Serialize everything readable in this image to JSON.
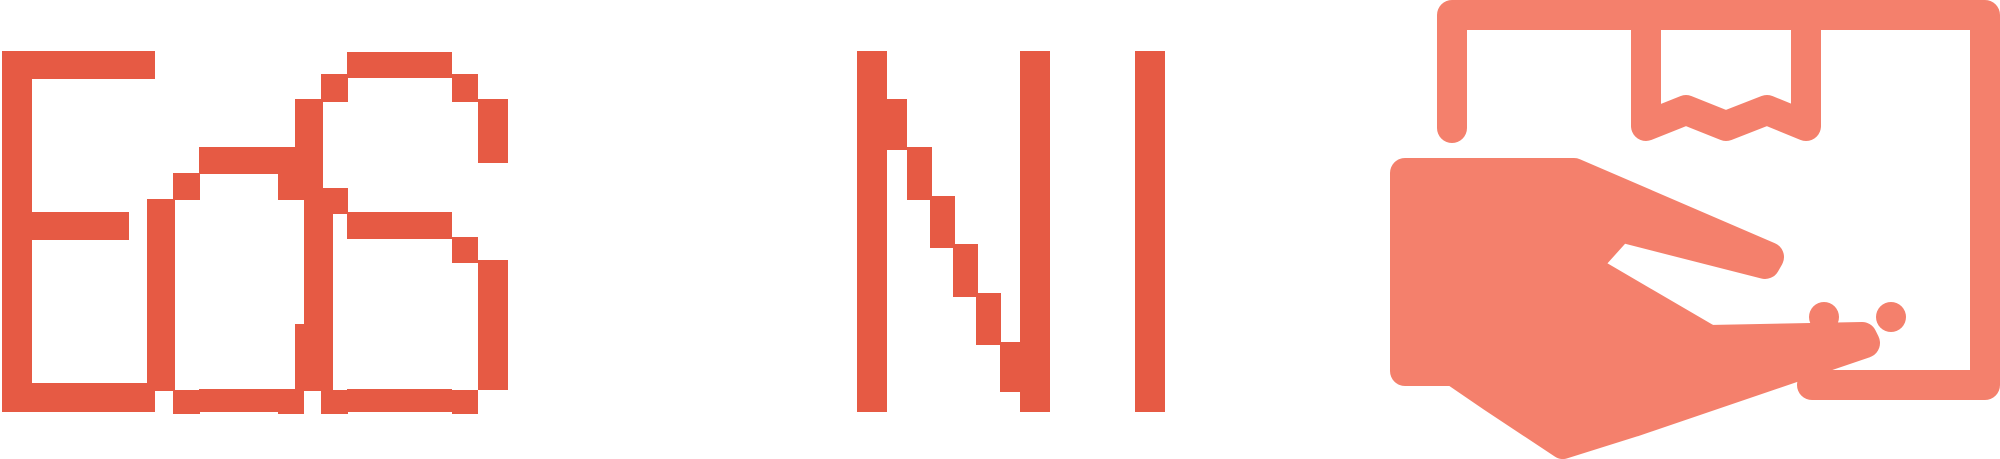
{
  "brand": {
    "wordmark": "EoS NI",
    "colors": {
      "wordmark": "#e65a44",
      "icon": "#f4806c",
      "background": "#ffffff"
    },
    "icon_name": "hand-delivering-box-icon"
  }
}
